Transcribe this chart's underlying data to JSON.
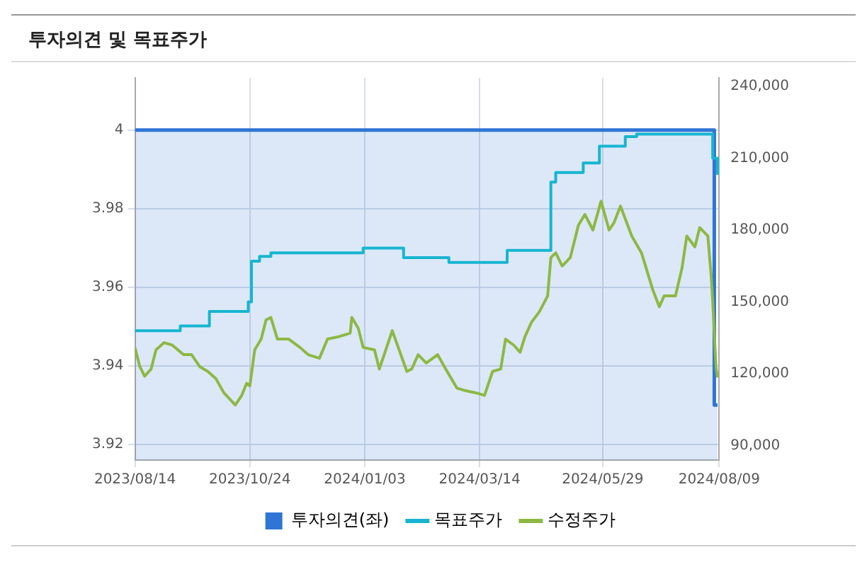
{
  "chart_data": {
    "type": "line",
    "title": "투자의견 및 목표주가",
    "xlim": [
      "2023-08-14",
      "2024-08-09"
    ],
    "xticks": [
      {
        "value": "2023-08-14",
        "label": "2023/08/14"
      },
      {
        "value": "2023-10-24",
        "label": "2023/10/24"
      },
      {
        "value": "2024-01-03",
        "label": "2024/01/03"
      },
      {
        "value": "2024-03-14",
        "label": "2024/03/14"
      },
      {
        "value": "2024-05-29",
        "label": "2024/05/29"
      },
      {
        "value": "2024-08-09",
        "label": "2024/08/09"
      }
    ],
    "ylim": [
      3.916,
      4.0133
    ],
    "yticks": [
      3.92,
      3.94,
      3.96,
      3.98,
      4
    ],
    "y2lim": [
      84000,
      243500
    ],
    "y2ticks": [
      {
        "value": 90000,
        "label": "90,000"
      },
      {
        "value": 120000,
        "label": "120,000"
      },
      {
        "value": 150000,
        "label": "150,000"
      },
      {
        "value": 180000,
        "label": "180,000"
      },
      {
        "value": 210000,
        "label": "210,000"
      },
      {
        "value": 240000,
        "label": "240,000"
      }
    ],
    "grid": true,
    "legend": "bottom",
    "marker": "none",
    "series": [
      {
        "name": "투자의견(좌)",
        "type": "area",
        "color": "#2e75d6",
        "x": [
          "2023-08-14",
          "2024-08-06",
          "2024-08-08"
        ],
        "values": [
          4,
          3.93,
          3.93
        ]
      },
      {
        "name": "목표주가",
        "type": "step",
        "axis": "y2",
        "color": "#17b5d0",
        "x": [
          "2023-08-14",
          "2023-09-11",
          "2023-09-29",
          "2023-10-23",
          "2023-10-25",
          "2023-10-30",
          "2023-11-06",
          "2024-01-02",
          "2024-01-27",
          "2024-02-24",
          "2024-03-31",
          "2024-04-27",
          "2024-04-30",
          "2024-05-17",
          "2024-05-27",
          "2024-06-12",
          "2024-06-19",
          "2024-08-05",
          "2024-08-08"
        ],
        "values": [
          138000,
          140000,
          146000,
          150000,
          167000,
          169000,
          170500,
          172500,
          168500,
          166500,
          171500,
          200000,
          204000,
          208000,
          215000,
          219000,
          220000,
          210000,
          203000
        ]
      },
      {
        "name": "수정주가",
        "type": "line",
        "axis": "y2",
        "color": "#8db843",
        "x": [
          "2023-08-14",
          "2023-08-17",
          "2023-08-20",
          "2023-08-24",
          "2023-08-27",
          "2023-09-01",
          "2023-09-06",
          "2023-09-13",
          "2023-09-18",
          "2023-09-23",
          "2023-09-28",
          "2023-10-03",
          "2023-10-08",
          "2023-10-15",
          "2023-10-19",
          "2023-10-22",
          "2023-10-24",
          "2023-10-27",
          "2023-10-31",
          "2023-11-03",
          "2023-11-06",
          "2023-11-10",
          "2023-11-17",
          "2023-11-24",
          "2023-11-29",
          "2023-12-06",
          "2023-12-11",
          "2023-12-18",
          "2023-12-25",
          "2023-12-26",
          "2023-12-30",
          "2024-01-02",
          "2024-01-09",
          "2024-01-12",
          "2024-01-15",
          "2024-01-20",
          "2024-01-29",
          "2024-02-01",
          "2024-02-05",
          "2024-02-10",
          "2024-02-17",
          "2024-02-22",
          "2024-02-29",
          "2024-03-05",
          "2024-03-12",
          "2024-03-17",
          "2024-03-22",
          "2024-03-27",
          "2024-03-30",
          "2024-04-04",
          "2024-04-08",
          "2024-04-11",
          "2024-04-15",
          "2024-04-20",
          "2024-04-25",
          "2024-04-27",
          "2024-04-30",
          "2024-05-04",
          "2024-05-09",
          "2024-05-14",
          "2024-05-18",
          "2024-05-23",
          "2024-05-28",
          "2024-06-02",
          "2024-06-05",
          "2024-06-09",
          "2024-06-16",
          "2024-06-22",
          "2024-06-29",
          "2024-07-03",
          "2024-07-06",
          "2024-07-13",
          "2024-07-17",
          "2024-07-20",
          "2024-07-25",
          "2024-07-28",
          "2024-08-02",
          "2024-08-04",
          "2024-08-05",
          "2024-08-07",
          "2024-08-08"
        ],
        "values": [
          131000,
          123000,
          119000,
          122000,
          130000,
          133000,
          132000,
          128000,
          128000,
          123000,
          121000,
          118000,
          112000,
          107000,
          111000,
          116000,
          115000,
          130000,
          134500,
          142500,
          143500,
          134500,
          134500,
          131000,
          128000,
          126500,
          134500,
          135500,
          137000,
          143500,
          139000,
          131000,
          130000,
          122000,
          128000,
          138000,
          121000,
          122000,
          128000,
          124500,
          128000,
          122000,
          114000,
          113000,
          112000,
          111000,
          121000,
          122000,
          134500,
          132000,
          129000,
          135500,
          141500,
          146000,
          152500,
          168500,
          170500,
          165000,
          168500,
          182000,
          186500,
          180000,
          192000,
          180000,
          183000,
          190000,
          177500,
          170500,
          155000,
          148000,
          152500,
          152500,
          164000,
          177500,
          173000,
          181000,
          177500,
          161500,
          150500,
          123000,
          118500
        ]
      }
    ]
  }
}
